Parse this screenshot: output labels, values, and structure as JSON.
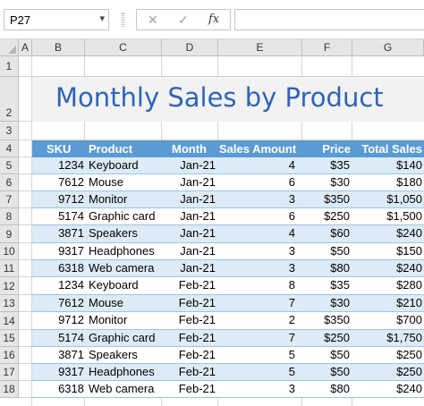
{
  "formula_bar": {
    "name_box": "P27",
    "cancel_icon": "✕",
    "enter_icon": "✓",
    "fx_label": "fx",
    "formula": ""
  },
  "columns": [
    "A",
    "B",
    "C",
    "D",
    "E",
    "F",
    "G"
  ],
  "rows": [
    "1",
    "2",
    "3",
    "4",
    "5",
    "6",
    "7",
    "8",
    "9",
    "10",
    "11",
    "12",
    "13",
    "14",
    "15",
    "16",
    "17",
    "18"
  ],
  "sheet": {
    "title": "Monthly Sales by Product",
    "headers": [
      "SKU",
      "Product",
      "Month",
      "Sales Amount",
      "Price",
      "Total Sales"
    ],
    "records": [
      [
        "1234",
        "Keyboard",
        "Jan-21",
        "4",
        "$35",
        "$140"
      ],
      [
        "7612",
        "Mouse",
        "Jan-21",
        "6",
        "$30",
        "$180"
      ],
      [
        "9712",
        "Monitor",
        "Jan-21",
        "3",
        "$350",
        "$1,050"
      ],
      [
        "5174",
        "Graphic card",
        "Jan-21",
        "6",
        "$250",
        "$1,500"
      ],
      [
        "3871",
        "Speakers",
        "Jan-21",
        "4",
        "$60",
        "$240"
      ],
      [
        "9317",
        "Headphones",
        "Jan-21",
        "3",
        "$50",
        "$150"
      ],
      [
        "6318",
        "Web camera",
        "Jan-21",
        "3",
        "$80",
        "$240"
      ],
      [
        "1234",
        "Keyboard",
        "Feb-21",
        "8",
        "$35",
        "$280"
      ],
      [
        "7612",
        "Mouse",
        "Feb-21",
        "7",
        "$30",
        "$210"
      ],
      [
        "9712",
        "Monitor",
        "Feb-21",
        "2",
        "$350",
        "$700"
      ],
      [
        "5174",
        "Graphic card",
        "Feb-21",
        "7",
        "$250",
        "$1,750"
      ],
      [
        "3871",
        "Speakers",
        "Feb-21",
        "5",
        "$50",
        "$250"
      ],
      [
        "9317",
        "Headphones",
        "Feb-21",
        "5",
        "$50",
        "$250"
      ],
      [
        "6318",
        "Web camera",
        "Feb-21",
        "3",
        "$80",
        "$240"
      ]
    ]
  },
  "colors": {
    "header_fill": "#5b9bd5",
    "band_fill": "#ddebf7",
    "title_color": "#2e64b8"
  }
}
